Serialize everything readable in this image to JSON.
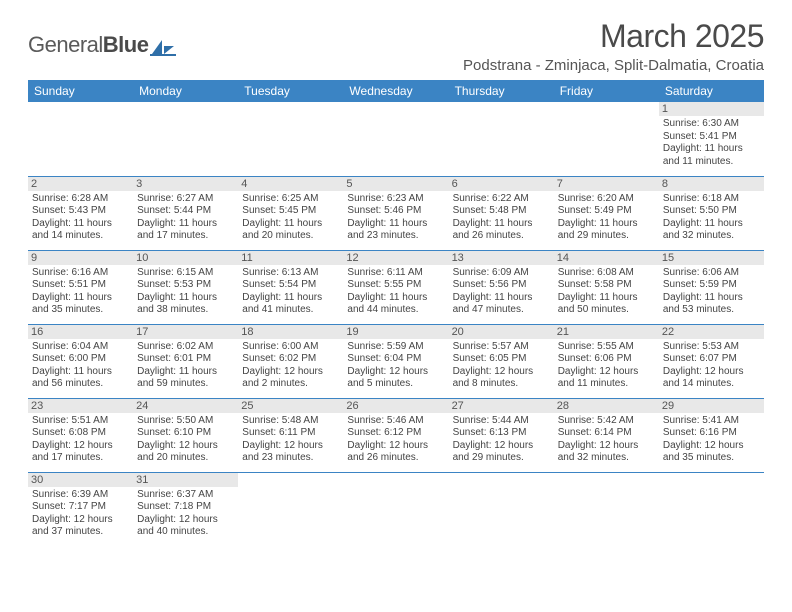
{
  "logo": {
    "part1": "General",
    "part2": "Blue"
  },
  "title": "March 2025",
  "location": "Podstrana - Zminjaca, Split-Dalmatia, Croatia",
  "colors": {
    "header_bg": "#3b84c4",
    "header_text": "#ffffff",
    "daynum_bg": "#e8e8e8",
    "row_border": "#3b84c4",
    "logo_accent": "#2f6fa8"
  },
  "weekdays": [
    "Sunday",
    "Monday",
    "Tuesday",
    "Wednesday",
    "Thursday",
    "Friday",
    "Saturday"
  ],
  "weeks": [
    [
      null,
      null,
      null,
      null,
      null,
      null,
      {
        "n": "1",
        "sr": "6:30 AM",
        "ss": "5:41 PM",
        "dl": "11 hours and 11 minutes."
      }
    ],
    [
      {
        "n": "2",
        "sr": "6:28 AM",
        "ss": "5:43 PM",
        "dl": "11 hours and 14 minutes."
      },
      {
        "n": "3",
        "sr": "6:27 AM",
        "ss": "5:44 PM",
        "dl": "11 hours and 17 minutes."
      },
      {
        "n": "4",
        "sr": "6:25 AM",
        "ss": "5:45 PM",
        "dl": "11 hours and 20 minutes."
      },
      {
        "n": "5",
        "sr": "6:23 AM",
        "ss": "5:46 PM",
        "dl": "11 hours and 23 minutes."
      },
      {
        "n": "6",
        "sr": "6:22 AM",
        "ss": "5:48 PM",
        "dl": "11 hours and 26 minutes."
      },
      {
        "n": "7",
        "sr": "6:20 AM",
        "ss": "5:49 PM",
        "dl": "11 hours and 29 minutes."
      },
      {
        "n": "8",
        "sr": "6:18 AM",
        "ss": "5:50 PM",
        "dl": "11 hours and 32 minutes."
      }
    ],
    [
      {
        "n": "9",
        "sr": "6:16 AM",
        "ss": "5:51 PM",
        "dl": "11 hours and 35 minutes."
      },
      {
        "n": "10",
        "sr": "6:15 AM",
        "ss": "5:53 PM",
        "dl": "11 hours and 38 minutes."
      },
      {
        "n": "11",
        "sr": "6:13 AM",
        "ss": "5:54 PM",
        "dl": "11 hours and 41 minutes."
      },
      {
        "n": "12",
        "sr": "6:11 AM",
        "ss": "5:55 PM",
        "dl": "11 hours and 44 minutes."
      },
      {
        "n": "13",
        "sr": "6:09 AM",
        "ss": "5:56 PM",
        "dl": "11 hours and 47 minutes."
      },
      {
        "n": "14",
        "sr": "6:08 AM",
        "ss": "5:58 PM",
        "dl": "11 hours and 50 minutes."
      },
      {
        "n": "15",
        "sr": "6:06 AM",
        "ss": "5:59 PM",
        "dl": "11 hours and 53 minutes."
      }
    ],
    [
      {
        "n": "16",
        "sr": "6:04 AM",
        "ss": "6:00 PM",
        "dl": "11 hours and 56 minutes."
      },
      {
        "n": "17",
        "sr": "6:02 AM",
        "ss": "6:01 PM",
        "dl": "11 hours and 59 minutes."
      },
      {
        "n": "18",
        "sr": "6:00 AM",
        "ss": "6:02 PM",
        "dl": "12 hours and 2 minutes."
      },
      {
        "n": "19",
        "sr": "5:59 AM",
        "ss": "6:04 PM",
        "dl": "12 hours and 5 minutes."
      },
      {
        "n": "20",
        "sr": "5:57 AM",
        "ss": "6:05 PM",
        "dl": "12 hours and 8 minutes."
      },
      {
        "n": "21",
        "sr": "5:55 AM",
        "ss": "6:06 PM",
        "dl": "12 hours and 11 minutes."
      },
      {
        "n": "22",
        "sr": "5:53 AM",
        "ss": "6:07 PM",
        "dl": "12 hours and 14 minutes."
      }
    ],
    [
      {
        "n": "23",
        "sr": "5:51 AM",
        "ss": "6:08 PM",
        "dl": "12 hours and 17 minutes."
      },
      {
        "n": "24",
        "sr": "5:50 AM",
        "ss": "6:10 PM",
        "dl": "12 hours and 20 minutes."
      },
      {
        "n": "25",
        "sr": "5:48 AM",
        "ss": "6:11 PM",
        "dl": "12 hours and 23 minutes."
      },
      {
        "n": "26",
        "sr": "5:46 AM",
        "ss": "6:12 PM",
        "dl": "12 hours and 26 minutes."
      },
      {
        "n": "27",
        "sr": "5:44 AM",
        "ss": "6:13 PM",
        "dl": "12 hours and 29 minutes."
      },
      {
        "n": "28",
        "sr": "5:42 AM",
        "ss": "6:14 PM",
        "dl": "12 hours and 32 minutes."
      },
      {
        "n": "29",
        "sr": "5:41 AM",
        "ss": "6:16 PM",
        "dl": "12 hours and 35 minutes."
      }
    ],
    [
      {
        "n": "30",
        "sr": "6:39 AM",
        "ss": "7:17 PM",
        "dl": "12 hours and 37 minutes."
      },
      {
        "n": "31",
        "sr": "6:37 AM",
        "ss": "7:18 PM",
        "dl": "12 hours and 40 minutes."
      },
      null,
      null,
      null,
      null,
      null
    ]
  ],
  "labels": {
    "sunrise": "Sunrise:",
    "sunset": "Sunset:",
    "daylight": "Daylight:"
  }
}
